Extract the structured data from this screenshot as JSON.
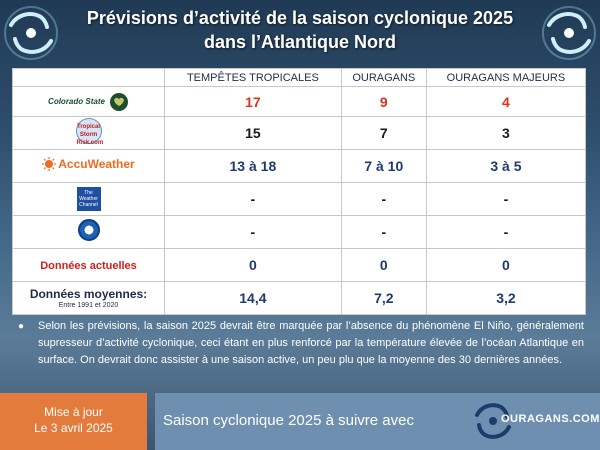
{
  "title": {
    "line1": "Prévisions d’activité de la saison cyclonique 2025",
    "line2": "dans l’Atlantique Nord"
  },
  "table": {
    "headers": [
      "TEMPÊTES TROPICALES",
      "OURAGANS",
      "OURAGANS MAJEURS"
    ],
    "rows": [
      {
        "source": "Colorado State University",
        "logo_text": "Colorado State",
        "values": [
          "17",
          "9",
          "4"
        ],
        "color": "#e0301e"
      },
      {
        "source": "Tropical Storm Risk",
        "logo_text": "Tropical Storm Risk.com",
        "values": [
          "15",
          "7",
          "3"
        ],
        "color": "#1a1a1a"
      },
      {
        "source": "AccuWeather",
        "logo_text": "AccuWeather",
        "values": [
          "13 à 18",
          "7 à 10",
          "3 à 5"
        ],
        "color": "#1f3a6e"
      },
      {
        "source": "The Weather Channel",
        "logo_text": "The Weather Channel",
        "values": [
          "-",
          "-",
          "-"
        ],
        "color": "#1a1a1a"
      },
      {
        "source": "NOAA",
        "logo_text": "NOAA",
        "values": [
          "-",
          "-",
          "-"
        ],
        "color": "#1a1a1a"
      },
      {
        "source": "Données actuelles",
        "values": [
          "0",
          "0",
          "0"
        ],
        "color": "#1f3a6e"
      },
      {
        "source": "Données moyennes:",
        "source_sub": "Entre 1991 et 2020",
        "values": [
          "14,4",
          "7,2",
          "3,2"
        ],
        "color": "#1f3a6e"
      }
    ]
  },
  "paragraph": "Selon les prévisions, la saison 2025 devrait être marquée par l’absence du phénomène El Niño, généralement supresseur d’activité cyclonique, ceci étant en plus renforcé par la température élevée de l’océan Atlantique en surface. On devrait donc assister à une saison active, un peu plu que la moyenne des 30 dernières années.",
  "footer": {
    "update_line1": "Mise à jour",
    "update_line2": "Le 3 avril 2025",
    "follow_text": "Saison cyclonique 2025 à suivre avec",
    "brand": "OURAGANS.COM"
  },
  "colors": {
    "footer_orange": "#e27b3c",
    "footer_blue": "#6e8fb0",
    "red_values": "#e0301e",
    "blue_values": "#1f3a6e"
  },
  "icons": [
    "hurricane-swirl-icon",
    "csu-ram-icon",
    "accuweather-sun-icon",
    "noaa-seal-icon"
  ]
}
